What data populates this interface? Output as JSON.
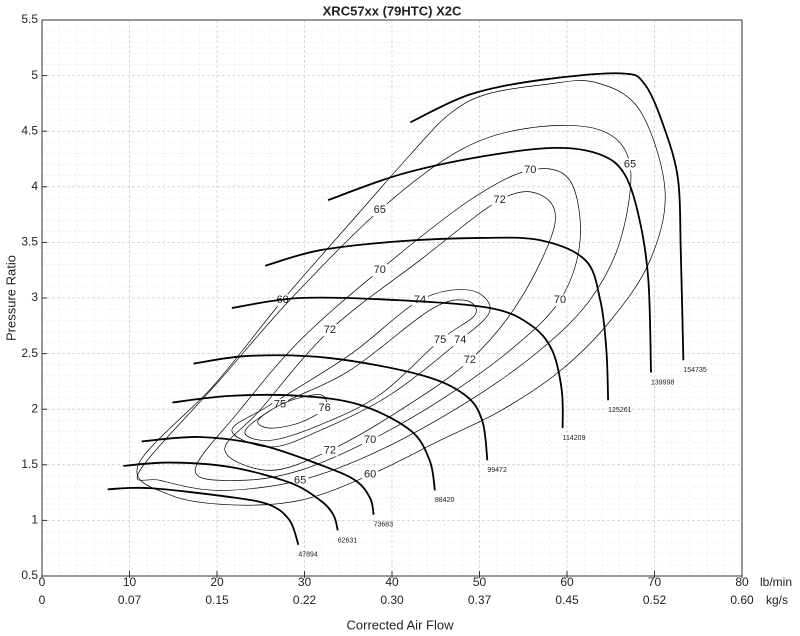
{
  "chart_data": {
    "type": "line",
    "title": "XRC57xx (79HTC) X2C",
    "x_label": "Corrected Air Flow",
    "y_label": "Pressure Ratio",
    "x_unit": "lb/min",
    "x2_unit": "kg/s",
    "xlim": [
      0,
      80
    ],
    "xticks": [
      0,
      10,
      20,
      30,
      40,
      50,
      60,
      70,
      80
    ],
    "x2lim": [
      0,
      0.6048
    ],
    "x2ticks": [
      0,
      {
        "value": 0.0756,
        "label": "0.07"
      },
      {
        "value": 0.1512,
        "label": "0.15"
      },
      {
        "value": 0.2268,
        "label": "0.22"
      },
      {
        "value": 0.3024,
        "label": "0.30"
      },
      {
        "value": 0.378,
        "label": "0.37"
      },
      {
        "value": 0.4536,
        "label": "0.45"
      },
      {
        "value": 0.5292,
        "label": "0.52"
      },
      {
        "value": 0.6048,
        "label": "0.60"
      }
    ],
    "ylim": [
      0.5,
      5.5
    ],
    "yticks": [
      0.5,
      1,
      1.5,
      2,
      2.5,
      3,
      3.5,
      4,
      4.5,
      5,
      5.5
    ],
    "grid": true,
    "series": [
      {
        "name": "47894",
        "color": "#000000",
        "x": [
          7.5,
          12.3,
          21.5,
          26,
          28.3,
          29.3
        ],
        "y": [
          1.28,
          1.29,
          1.21,
          1.14,
          1.0,
          0.78
        ]
      },
      {
        "name": "62631",
        "color": "#000000",
        "x": [
          9.3,
          14.6,
          21.5,
          28.3,
          31.8,
          33.3,
          33.8
        ],
        "y": [
          1.49,
          1.52,
          1.48,
          1.34,
          1.18,
          1.05,
          0.91
        ]
      },
      {
        "name": "73683",
        "color": "#000000",
        "x": [
          11.4,
          18,
          24.9,
          31.8,
          35.8,
          37.5,
          37.9
        ],
        "y": [
          1.71,
          1.75,
          1.68,
          1.5,
          1.36,
          1.2,
          1.05
        ]
      },
      {
        "name": "88420",
        "color": "#000000",
        "x": [
          14.9,
          21.5,
          29.5,
          36.3,
          42.1,
          44.3,
          44.9
        ],
        "y": [
          2.06,
          2.12,
          2.12,
          2.04,
          1.81,
          1.54,
          1.27
        ]
      },
      {
        "name": "99472",
        "color": "#000000",
        "x": [
          17.3,
          23.8,
          32.9,
          43.2,
          48.3,
          50.3,
          50.9
        ],
        "y": [
          2.41,
          2.48,
          2.46,
          2.31,
          2.13,
          1.9,
          1.54
        ]
      },
      {
        "name": "114209",
        "color": "#000000",
        "x": [
          21.7,
          29.5,
          40.9,
          51.2,
          55.8,
          58.3,
          59.4,
          59.5
        ],
        "y": [
          2.91,
          3.0,
          2.98,
          2.91,
          2.76,
          2.53,
          2.17,
          1.83
        ]
      },
      {
        "name": "125261",
        "color": "#000000",
        "x": [
          25.5,
          31.8,
          40.9,
          50.1,
          56.9,
          62.1,
          63.8,
          64.5,
          64.7
        ],
        "y": [
          3.29,
          3.43,
          3.51,
          3.54,
          3.52,
          3.34,
          2.98,
          2.53,
          2.08
        ]
      },
      {
        "name": "139998",
        "color": "#000000",
        "x": [
          32.7,
          40.9,
          50.1,
          58.6,
          63.8,
          66.6,
          68.3,
          69.3,
          69.6
        ],
        "y": [
          3.88,
          4.11,
          4.27,
          4.35,
          4.29,
          4.11,
          3.7,
          3.16,
          2.33
        ]
      },
      {
        "name": "154735",
        "color": "#000000",
        "x": [
          42.1,
          48.9,
          56.9,
          66.1,
          68.9,
          71.2,
          72.7,
          73.0,
          73.3
        ],
        "y": [
          4.58,
          4.83,
          4.96,
          5.02,
          4.92,
          4.51,
          4.06,
          3.43,
          2.44
        ]
      }
    ],
    "efficiency_contours": [
      {
        "level": 60,
        "color": "#000000",
        "x": [
          11.0,
          19.7,
          27.5,
          35.5,
          42.1,
          46.5,
          50.7,
          57.5,
          63.2,
          68.3,
          71.2,
          69.5,
          65.0,
          59.3,
          52.5,
          45.5,
          37.5,
          29.5,
          21.5,
          14.6
        ],
        "y": [
          1.5,
          2.22,
          2.98,
          3.7,
          4.29,
          4.65,
          4.83,
          4.92,
          4.94,
          4.69,
          3.97,
          3.34,
          2.8,
          2.35,
          1.99,
          1.72,
          1.41,
          1.18,
          1.14,
          1.23
        ]
      },
      {
        "level": 65,
        "color": "#000000",
        "x": [
          11.2,
          20.3,
          28.3,
          38.6,
          47.8,
          55.8,
          63.8,
          67.2,
          66.1,
          62.6,
          56.9,
          48.9,
          38.6,
          29.5,
          20.3,
          13.5
        ],
        "y": [
          1.45,
          2.26,
          2.98,
          3.79,
          4.33,
          4.53,
          4.51,
          4.2,
          3.52,
          2.98,
          2.53,
          2.08,
          1.63,
          1.36,
          1.27,
          1.36
        ]
      },
      {
        "level": 70,
        "color": "#000000",
        "x": [
          17.5,
          22.6,
          29.5,
          38.6,
          48.9,
          55.8,
          60.3,
          61.5,
          59.2,
          53.5,
          45.5,
          37.5,
          29.5,
          22.6
        ],
        "y": [
          1.45,
          1.99,
          2.62,
          3.25,
          3.88,
          4.15,
          4.06,
          3.52,
          2.98,
          2.53,
          2.08,
          1.72,
          1.45,
          1.36
        ]
      },
      {
        "level": 72,
        "color": "#000000",
        "x": [
          20.9,
          24.9,
          32.9,
          43.2,
          52.3,
          56.9,
          58.6,
          54.6,
          48.9,
          40.9,
          32.9,
          26.1
        ],
        "y": [
          1.63,
          1.99,
          2.71,
          3.34,
          3.88,
          3.93,
          3.66,
          2.98,
          2.44,
          1.99,
          1.63,
          1.45
        ]
      },
      {
        "level": 74,
        "color": "#000000",
        "x": [
          21.7,
          26.1,
          35.2,
          43.2,
          48.9,
          51.2,
          47.8,
          39.8,
          31.8,
          26.1
        ],
        "y": [
          1.81,
          2.04,
          2.49,
          2.98,
          3.07,
          2.89,
          2.62,
          2.13,
          1.81,
          1.66
        ]
      },
      {
        "level": 75,
        "color": "#000000",
        "x": [
          23.2,
          27.2,
          35.2,
          44.3,
          48.3,
          49.5,
          45.5,
          38.6,
          31.8,
          26.1
        ],
        "y": [
          1.8,
          2.04,
          2.35,
          2.89,
          2.98,
          2.85,
          2.62,
          2.13,
          1.86,
          1.72
        ]
      },
      {
        "level": 76,
        "color": "#000000",
        "x": [
          24.7,
          27.8,
          31.8,
          32.3,
          29.5,
          26.1
        ],
        "y": [
          1.9,
          2.06,
          2.13,
          2.01,
          1.88,
          1.83
        ]
      }
    ]
  }
}
